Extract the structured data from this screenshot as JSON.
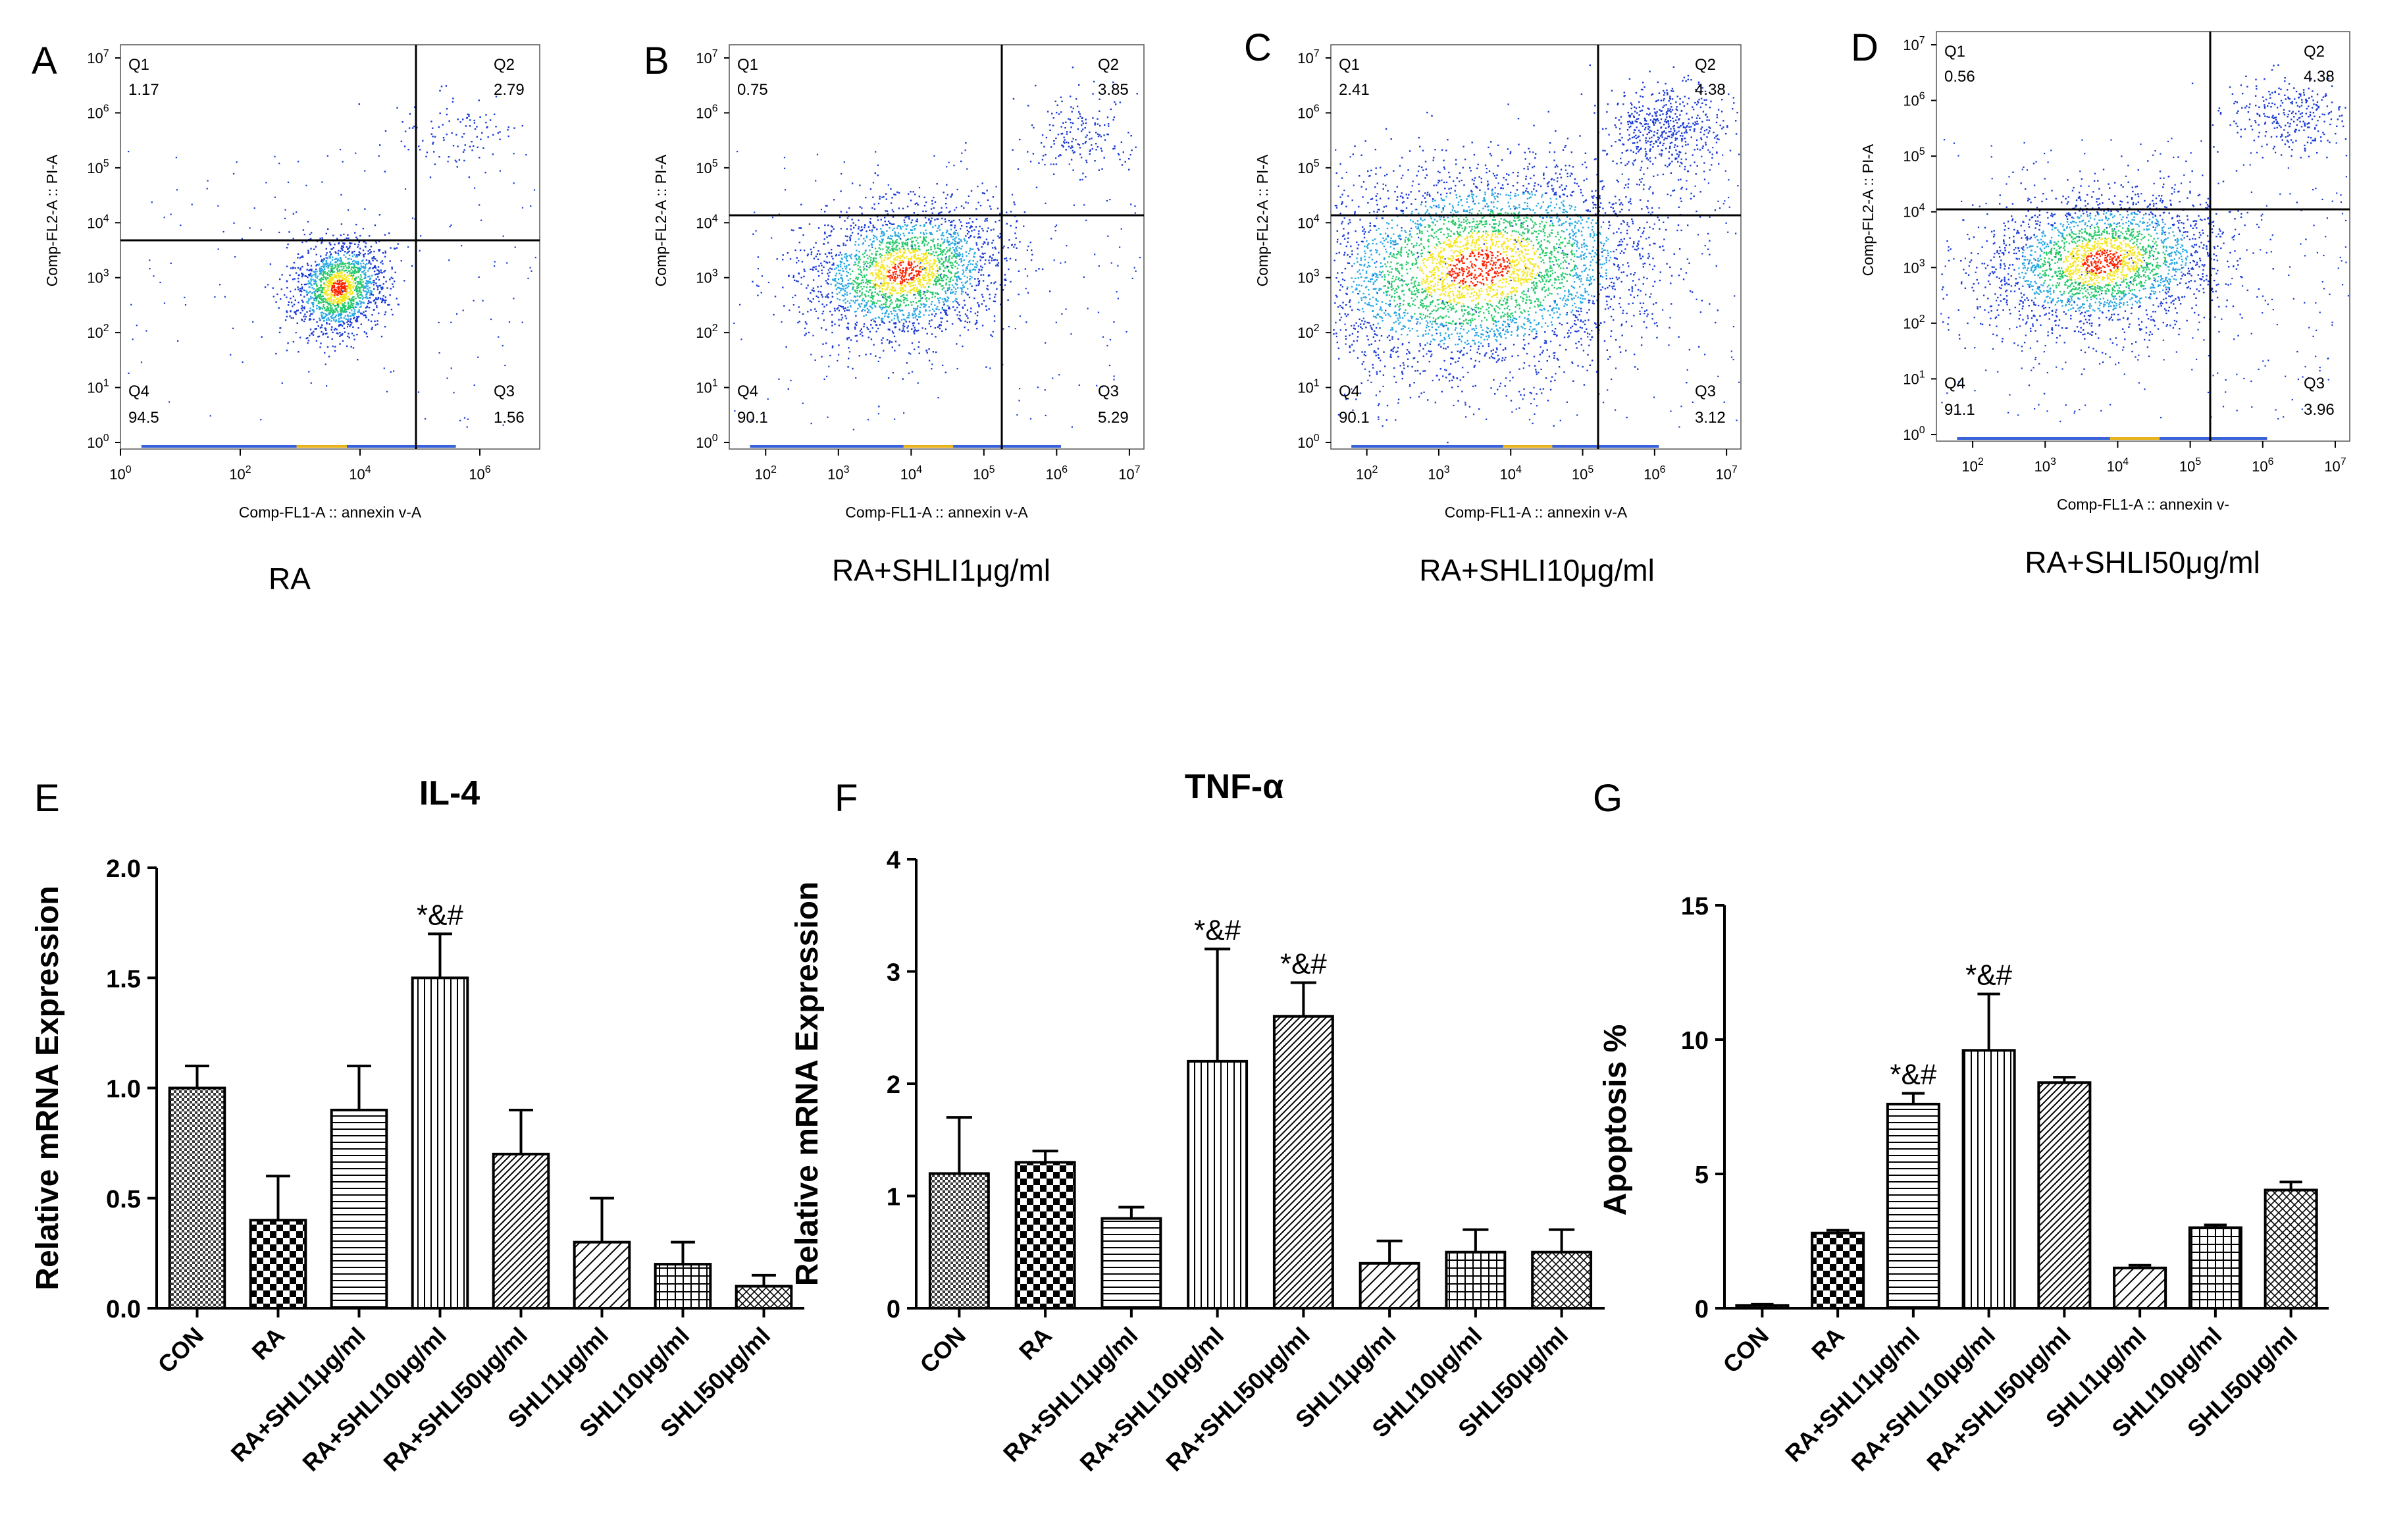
{
  "chart_data": [
    {
      "panel": "A",
      "type": "scatter",
      "title": "RA",
      "xlabel": "Comp-FL1-A :: annexin v-A",
      "ylabel": "Comp-FL2-A :: PI-A",
      "x_ticks": [
        0,
        2,
        4,
        6
      ],
      "y_ticks": [
        0,
        1,
        2,
        3,
        4,
        5,
        6,
        7
      ],
      "tick_base": "10",
      "quadrants": {
        "Q1": "1.17",
        "Q2": "2.79",
        "Q3": "1.56",
        "Q4": "94.5"
      },
      "colors": {
        "point": "#1a3ad6",
        "hot": "#ff2200",
        "warm": "#f5e61e",
        "mid": "#27c96b"
      }
    },
    {
      "panel": "B",
      "type": "scatter",
      "title": "RA+SHLI1μg/ml",
      "xlabel": "Comp-FL1-A :: annexin v-A",
      "ylabel": "Comp-FL2-A :: PI-A",
      "x_ticks": [
        2,
        3,
        4,
        5,
        6,
        7
      ],
      "y_ticks": [
        0,
        1,
        2,
        3,
        4,
        5,
        6,
        7
      ],
      "tick_base": "10",
      "quadrants": {
        "Q1": "0.75",
        "Q2": "3.85",
        "Q3": "5.29",
        "Q4": "90.1"
      },
      "colors": {
        "point": "#1a3ad6",
        "hot": "#ff2200",
        "warm": "#f5e61e",
        "mid": "#27c96b"
      }
    },
    {
      "panel": "C",
      "type": "scatter",
      "title": "RA+SHLI10μg/ml",
      "xlabel": "Comp-FL1-A :: annexin v-A",
      "ylabel": "Comp-FL2-A :: PI-A",
      "x_ticks": [
        2,
        3,
        4,
        5,
        6,
        7
      ],
      "y_ticks": [
        0,
        1,
        2,
        3,
        4,
        5,
        6,
        7
      ],
      "tick_base": "10",
      "quadrants": {
        "Q1": "2.41",
        "Q2": "4.38",
        "Q3": "3.12",
        "Q4": "90.1"
      },
      "colors": {
        "point": "#1a3ad6",
        "hot": "#ff2200",
        "warm": "#f5e61e",
        "mid": "#27c96b"
      }
    },
    {
      "panel": "D",
      "type": "scatter",
      "title": "RA+SHLI50μg/ml",
      "xlabel": "Comp-FL1-A :: annexin v-",
      "ylabel": "Comp-FL2-A :: PI-A",
      "x_ticks": [
        2,
        3,
        4,
        5,
        6,
        7
      ],
      "y_ticks": [
        0,
        1,
        2,
        3,
        4,
        5,
        6,
        7
      ],
      "tick_base": "10",
      "quadrants": {
        "Q1": "0.56",
        "Q2": "4.38",
        "Q3": "3.96",
        "Q4": "91.1"
      },
      "colors": {
        "point": "#1a3ad6",
        "hot": "#ff2200",
        "warm": "#f5e61e",
        "mid": "#27c96b"
      }
    },
    {
      "panel": "E",
      "type": "bar",
      "title": "IL-4",
      "xlabel": "",
      "ylabel": "Relative mRNA Expression",
      "ylim": [
        0,
        2
      ],
      "yticks": [
        "0.0",
        "0.5",
        "1.0",
        "1.5",
        "2.0"
      ],
      "categories": [
        "CON",
        "RA",
        "RA+SHLI1μg/ml",
        "RA+SHLI10μg/ml",
        "RA+SHLI50μg/ml",
        "SHLI1μg/ml",
        "SHLI10μg/ml",
        "SHLI50μg/ml"
      ],
      "values": [
        1.0,
        0.4,
        0.9,
        1.5,
        0.7,
        0.3,
        0.2,
        0.1
      ],
      "errors": [
        0.1,
        0.2,
        0.2,
        0.2,
        0.2,
        0.2,
        0.1,
        0.05
      ],
      "annotations": [
        "",
        "",
        "",
        "*&#",
        "",
        "",
        "",
        ""
      ]
    },
    {
      "panel": "F",
      "type": "bar",
      "title": "TNF-α",
      "xlabel": "",
      "ylabel": "Relative mRNA Expression",
      "ylim": [
        0,
        4
      ],
      "yticks": [
        "0",
        "1",
        "2",
        "3",
        "4"
      ],
      "categories": [
        "CON",
        "RA",
        "RA+SHLI1μg/ml",
        "RA+SHLI10μg/ml",
        "RA+SHLI50μg/ml",
        "SHLI1μg/ml",
        "SHLI10μg/ml",
        "SHLI50μg/ml"
      ],
      "values": [
        1.2,
        1.3,
        0.8,
        2.2,
        2.6,
        0.4,
        0.5,
        0.5
      ],
      "errors": [
        0.5,
        0.1,
        0.1,
        1.0,
        0.3,
        0.2,
        0.2,
        0.2
      ],
      "annotations": [
        "",
        "",
        "",
        "*&#",
        "*&#",
        "",
        "",
        ""
      ]
    },
    {
      "panel": "G",
      "type": "bar",
      "title": "",
      "xlabel": "",
      "ylabel": "Apoptosis %",
      "ylim": [
        0,
        15
      ],
      "yticks": [
        "0",
        "5",
        "10",
        "15"
      ],
      "categories": [
        "CON",
        "RA",
        "RA+SHLI1μg/ml",
        "RA+SHLI10μg/ml",
        "RA+SHLI50μg/ml",
        "SHLI1μg/ml",
        "SHLI10μg/ml",
        "SHLI50μg/ml"
      ],
      "values": [
        0.1,
        2.8,
        7.6,
        9.6,
        8.4,
        1.5,
        3.0,
        4.4
      ],
      "errors": [
        0.05,
        0.1,
        0.4,
        2.1,
        0.2,
        0.1,
        0.1,
        0.3
      ],
      "annotations": [
        "",
        "",
        "*&#",
        "*&#",
        "",
        "",
        "",
        ""
      ]
    }
  ]
}
